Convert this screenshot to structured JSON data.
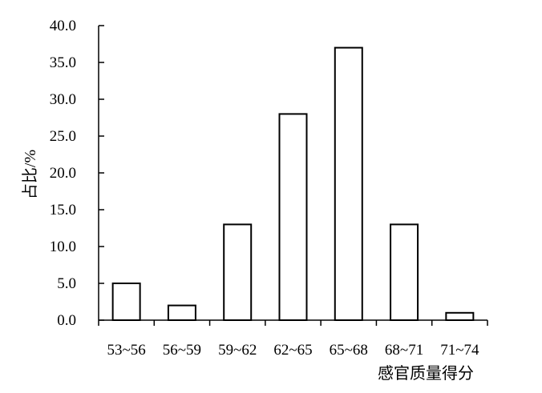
{
  "chart_data": {
    "type": "bar",
    "title": "",
    "xlabel": "感官质量得分",
    "ylabel": "占比/%",
    "categories": [
      "53~56",
      "56~59",
      "59~62",
      "62~65",
      "65~68",
      "68~71",
      "71~74"
    ],
    "values": [
      5.0,
      2.0,
      13.0,
      28.0,
      37.0,
      13.0,
      1.0
    ],
    "ylim": [
      0,
      40
    ],
    "yticks": [
      "0.0",
      "5.0",
      "10.0",
      "15.0",
      "20.0",
      "25.0",
      "30.0",
      "35.0",
      "40.0"
    ],
    "grid": false,
    "legend": "none",
    "bar_fill": "#ffffff",
    "bar_stroke": "#000000"
  }
}
